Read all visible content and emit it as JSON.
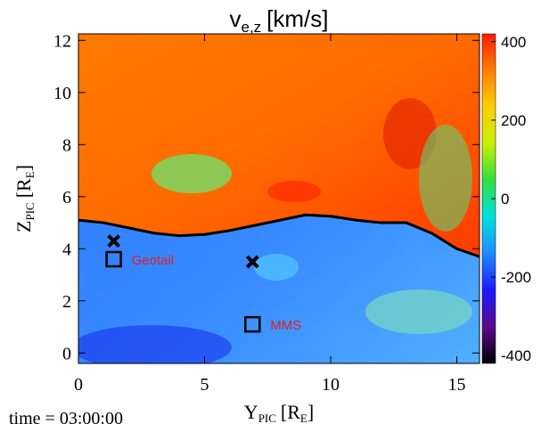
{
  "chart_data": {
    "type": "heatmap",
    "title": {
      "main": "v",
      "sub": "e,z",
      "unit": "[km/s]"
    },
    "x_label": {
      "main": "Y",
      "sub": "PIC",
      "unit_open": "[R",
      "unit_sub": "E",
      "unit_close": "]"
    },
    "y_label": {
      "main": "Z",
      "sub": "PIC",
      "unit_open": "[R",
      "unit_sub": "E",
      "unit_close": "]"
    },
    "time_label": "time = 03:00:00",
    "xlim": [
      0,
      15.9
    ],
    "xticks": [
      0,
      5,
      10,
      15
    ],
    "ylim": [
      -0.4,
      12.25
    ],
    "yticks": [
      0,
      2,
      4,
      6,
      8,
      10,
      12
    ],
    "clim": [
      -420,
      420
    ],
    "cticks": [
      400,
      200,
      0,
      -200,
      -400
    ],
    "colormap": [
      "#000000",
      "#5a0a8c",
      "#1a1aff",
      "#1e8cff",
      "#00e0e0",
      "#30e040",
      "#c8f000",
      "#ffd000",
      "#ff8000",
      "#ff1a00"
    ],
    "boundary": {
      "x": [
        0,
        1,
        2,
        3,
        4,
        5,
        6,
        7,
        8,
        9,
        10,
        11,
        12,
        13,
        14,
        15,
        15.9
      ],
      "y": [
        5.1,
        5.0,
        4.8,
        4.6,
        4.5,
        4.55,
        4.7,
        4.9,
        5.1,
        5.3,
        5.25,
        5.1,
        5.0,
        5.0,
        4.6,
        4.0,
        3.7
      ]
    },
    "markers": [
      {
        "shape": "x",
        "x": 1.4,
        "y": 4.3
      },
      {
        "shape": "square",
        "x": 1.4,
        "y": 3.6,
        "label": "Geotail"
      },
      {
        "shape": "x",
        "x": 6.9,
        "y": 3.5
      },
      {
        "shape": "square",
        "x": 6.9,
        "y": 1.1,
        "label": "MMS"
      }
    ]
  }
}
